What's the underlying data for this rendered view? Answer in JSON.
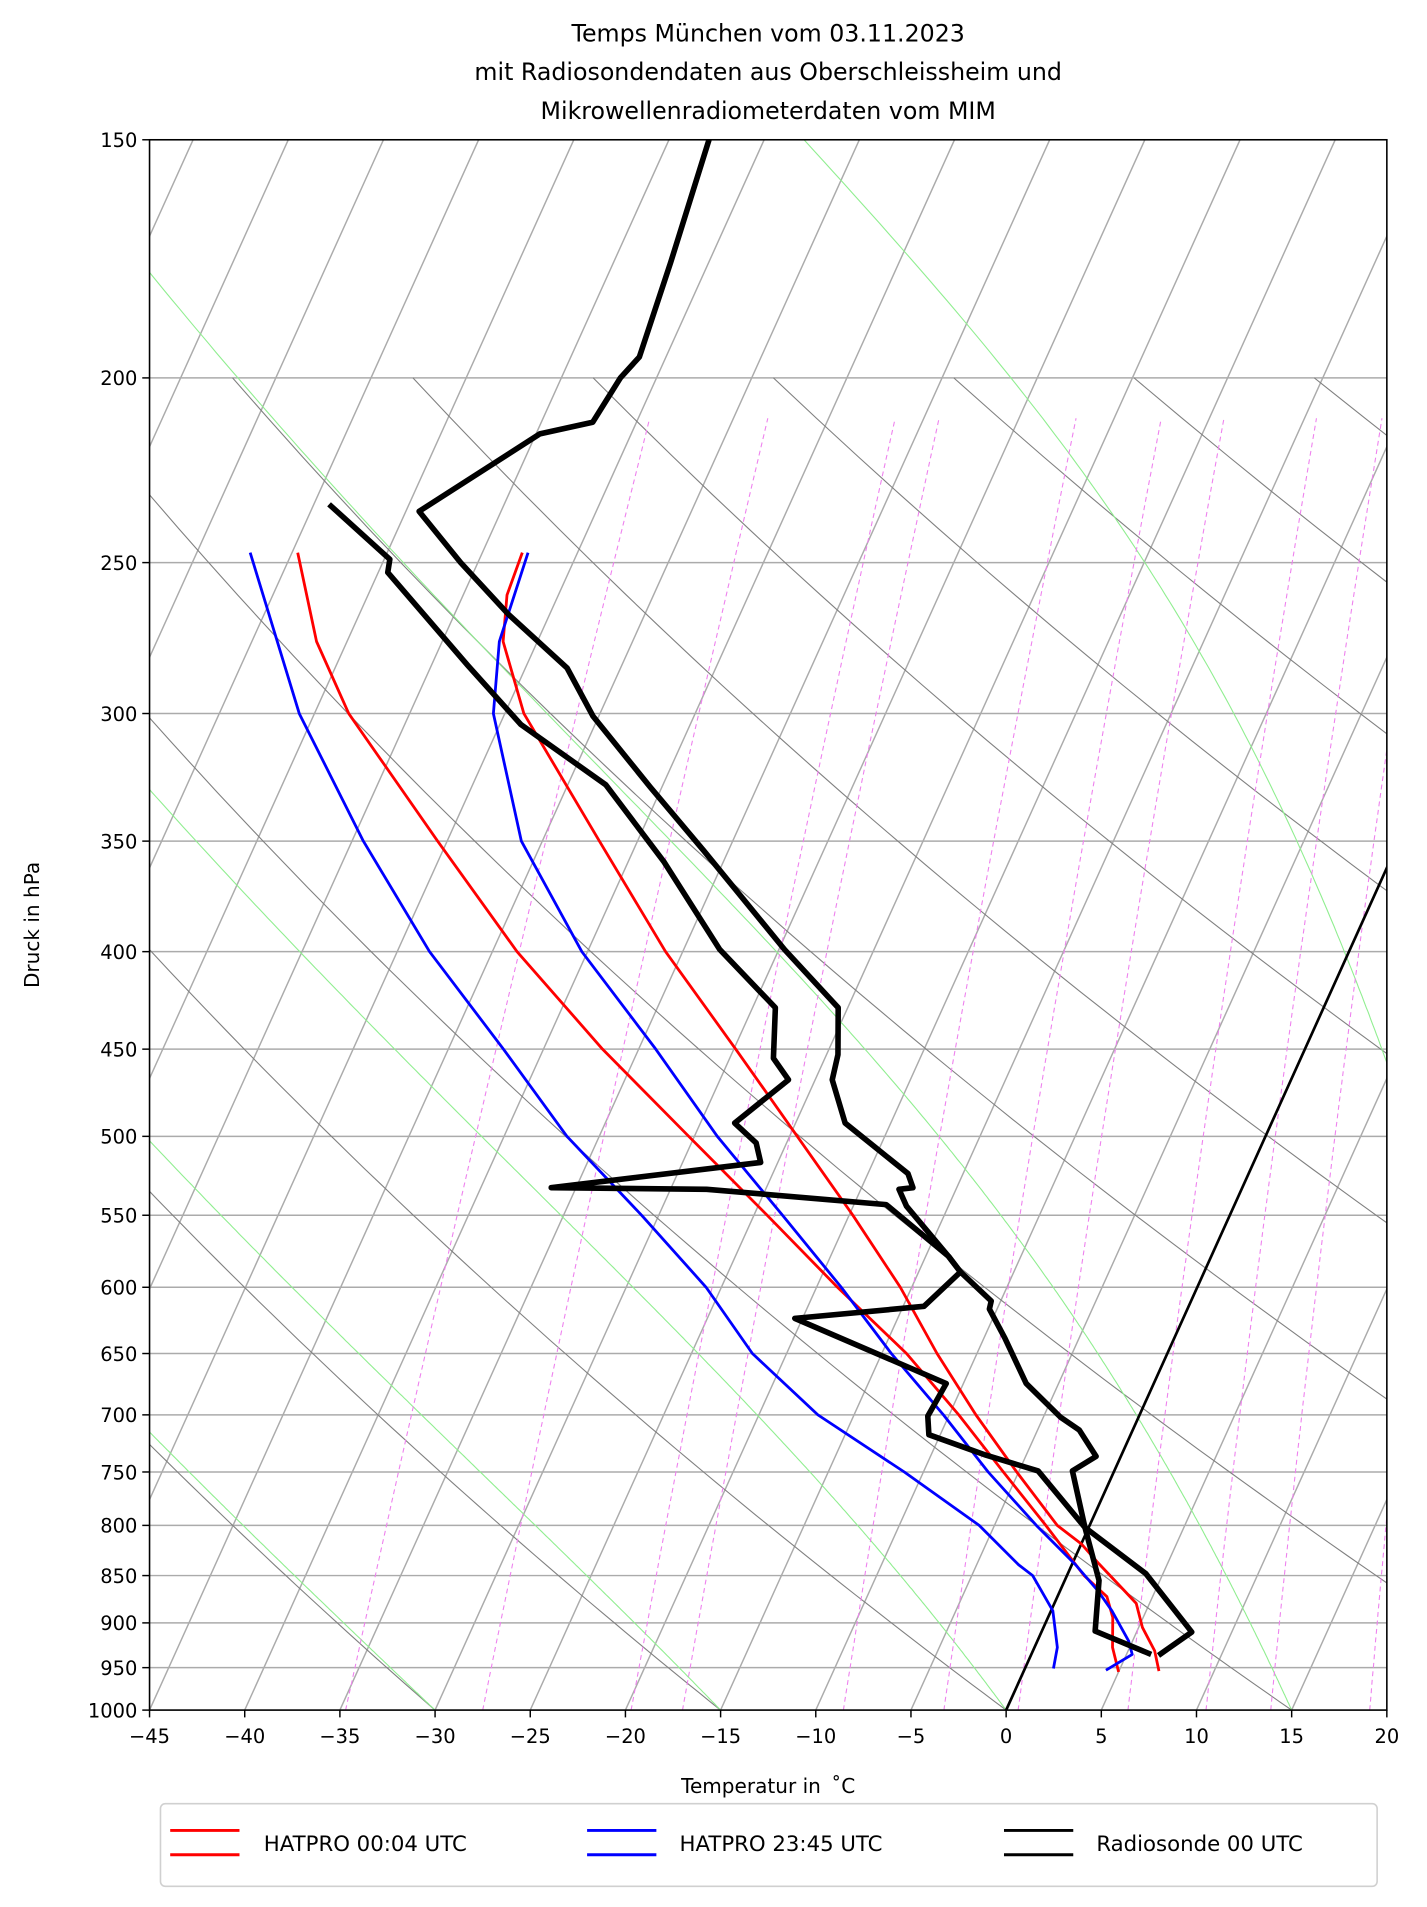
{
  "chart_data": {
    "type": "line",
    "subtype": "skew-T log-p diagram",
    "title": [
      "Temps München vom 03.11.2023",
      "mit Radiosondendaten aus Oberschleissheim und",
      "Mikrowellenradiometerdaten vom MIM"
    ],
    "xlabel": "Temperatur in  ˚C",
    "ylabel": "Druck in hPa",
    "xlim": [
      -45,
      20
    ],
    "ylim": [
      1000,
      150
    ],
    "xticks": [
      -45,
      -40,
      -35,
      -30,
      -25,
      -20,
      -15,
      -10,
      -5,
      0,
      5,
      10,
      15,
      20
    ],
    "yticks": [
      1000,
      950,
      900,
      850,
      800,
      750,
      700,
      650,
      600,
      550,
      500,
      450,
      400,
      350,
      300,
      250,
      200,
      150
    ],
    "grid": true,
    "legend_position": "below",
    "background_lines": {
      "isotherm_step_C": 5,
      "highlighted_isotherm_C": 0,
      "dry_adiabats_theta_C": [
        -30,
        -15,
        0,
        15,
        30,
        45,
        60,
        75,
        90,
        105,
        120,
        135,
        150,
        165,
        180,
        195
      ],
      "moist_adiabats_T1000_C": [
        -30,
        -15,
        0,
        15,
        30,
        45
      ],
      "mixing_ratio_lines_Td1000_C": [
        -34.7,
        -27.5,
        -19.7,
        -17.0,
        -8.55,
        -3.27,
        0.63,
        6.4,
        10.5,
        13.9,
        19.1
      ]
    },
    "series": [
      {
        "name": "HATPRO 00:04 UTC",
        "color": "#ff0000",
        "temperature": [
          [
            954,
            7.1
          ],
          [
            931,
            6.4
          ],
          [
            905,
            5.2
          ],
          [
            879,
            4.3
          ],
          [
            866,
            3.4
          ],
          [
            838,
            1.4
          ],
          [
            818,
            0.0
          ],
          [
            800,
            -1.7
          ],
          [
            750,
            -5.1
          ],
          [
            700,
            -8.6
          ],
          [
            650,
            -12.1
          ],
          [
            600,
            -15.6
          ],
          [
            550,
            -19.8
          ],
          [
            500,
            -24.6
          ],
          [
            450,
            -29.9
          ],
          [
            400,
            -35.9
          ],
          [
            350,
            -42.0
          ],
          [
            300,
            -49.0
          ],
          [
            275,
            -51.8
          ],
          [
            260,
            -52.7
          ],
          [
            247,
            -52.9
          ]
        ],
        "dewpoint": [
          [
            955,
            5.0
          ],
          [
            927,
            4.1
          ],
          [
            894,
            3.4
          ],
          [
            872,
            2.6
          ],
          [
            850,
            0.9
          ],
          [
            800,
            -2.3
          ],
          [
            750,
            -5.8
          ],
          [
            700,
            -9.5
          ],
          [
            650,
            -13.7
          ],
          [
            600,
            -18.9
          ],
          [
            550,
            -24.3
          ],
          [
            500,
            -30.3
          ],
          [
            450,
            -36.9
          ],
          [
            400,
            -43.7
          ],
          [
            350,
            -50.5
          ],
          [
            300,
            -58.2
          ],
          [
            275,
            -61.6
          ],
          [
            247,
            -64.7
          ]
        ]
      },
      {
        "name": "HATPRO 23:45 UTC",
        "color": "#0000ff",
        "temperature": [
          [
            953,
            4.3
          ],
          [
            935,
            5.3
          ],
          [
            920,
            4.8
          ],
          [
            887,
            3.2
          ],
          [
            866,
            2.0
          ],
          [
            839,
            0.2
          ],
          [
            800,
            -2.8
          ],
          [
            750,
            -6.6
          ],
          [
            700,
            -10.3
          ],
          [
            650,
            -14.5
          ],
          [
            600,
            -18.7
          ],
          [
            550,
            -23.5
          ],
          [
            500,
            -28.8
          ],
          [
            450,
            -34.1
          ],
          [
            400,
            -40.3
          ],
          [
            350,
            -46.1
          ],
          [
            300,
            -50.6
          ],
          [
            275,
            -52.0
          ],
          [
            247,
            -52.6
          ]
        ],
        "dewpoint": [
          [
            951,
            1.5
          ],
          [
            927,
            1.2
          ],
          [
            887,
            0.1
          ],
          [
            850,
            -1.8
          ],
          [
            839,
            -2.8
          ],
          [
            800,
            -5.8
          ],
          [
            750,
            -11.0
          ],
          [
            700,
            -16.9
          ],
          [
            650,
            -21.8
          ],
          [
            600,
            -25.8
          ],
          [
            550,
            -30.9
          ],
          [
            500,
            -36.7
          ],
          [
            450,
            -42.1
          ],
          [
            400,
            -48.3
          ],
          [
            350,
            -54.4
          ],
          [
            300,
            -60.8
          ],
          [
            247,
            -67.2
          ]
        ]
      },
      {
        "name": "Radiosonde 00 UTC",
        "color": "#000000",
        "temperature": [
          [
            936,
            6.7
          ],
          [
            910,
            7.9
          ],
          [
            848,
            4.1
          ],
          [
            802,
            -0.2
          ],
          [
            749,
            -2.2
          ],
          [
            736,
            -1.3
          ],
          [
            713,
            -2.8
          ],
          [
            702,
            -4.1
          ],
          [
            674,
            -6.7
          ],
          [
            638,
            -8.9
          ],
          [
            616,
            -10.4
          ],
          [
            610,
            -10.5
          ],
          [
            589,
            -12.8
          ],
          [
            578,
            -13.8
          ],
          [
            544,
            -17.2
          ],
          [
            533,
            -18.0
          ],
          [
            532,
            -17.3
          ],
          [
            523,
            -17.9
          ],
          [
            492,
            -22.4
          ],
          [
            467,
            -24.1
          ],
          [
            453,
            -24.4
          ],
          [
            428,
            -25.5
          ],
          [
            399,
            -29.7
          ],
          [
            354,
            -36.3
          ],
          [
            328,
            -40.6
          ],
          [
            301,
            -45.3
          ],
          [
            284,
            -47.8
          ],
          [
            266,
            -52.2
          ],
          [
            250,
            -55.9
          ],
          [
            235,
            -59.3
          ],
          [
            214,
            -54.8
          ],
          [
            211,
            -52.3
          ],
          [
            200,
            -51.9
          ],
          [
            195,
            -51.4
          ],
          [
            174,
            -52.0
          ],
          [
            150,
            -52.9
          ]
        ],
        "dewpoint": [
          [
            935,
            6.3
          ],
          [
            909,
            2.8
          ],
          [
            855,
            1.8
          ],
          [
            802,
            -0.2
          ],
          [
            749,
            -4.0
          ],
          [
            735,
            -7.1
          ],
          [
            717,
            -10.6
          ],
          [
            701,
            -11.1
          ],
          [
            674,
            -10.9
          ],
          [
            623,
            -20.4
          ],
          [
            614,
            -13.9
          ],
          [
            589,
            -12.8
          ],
          [
            578,
            -13.8
          ],
          [
            543,
            -18.3
          ],
          [
            533,
            -28.1
          ],
          [
            532,
            -36.3
          ],
          [
            516,
            -25.9
          ],
          [
            504,
            -26.6
          ],
          [
            492,
            -28.2
          ],
          [
            467,
            -26.4
          ],
          [
            455,
            -27.7
          ],
          [
            428,
            -28.8
          ],
          [
            399,
            -33.1
          ],
          [
            359,
            -38.1
          ],
          [
            327,
            -43.0
          ],
          [
            304,
            -48.9
          ],
          [
            283,
            -53.1
          ],
          [
            253,
            -59.5
          ],
          [
            249,
            -59.7
          ],
          [
            233,
            -64.2
          ]
        ]
      }
    ]
  }
}
